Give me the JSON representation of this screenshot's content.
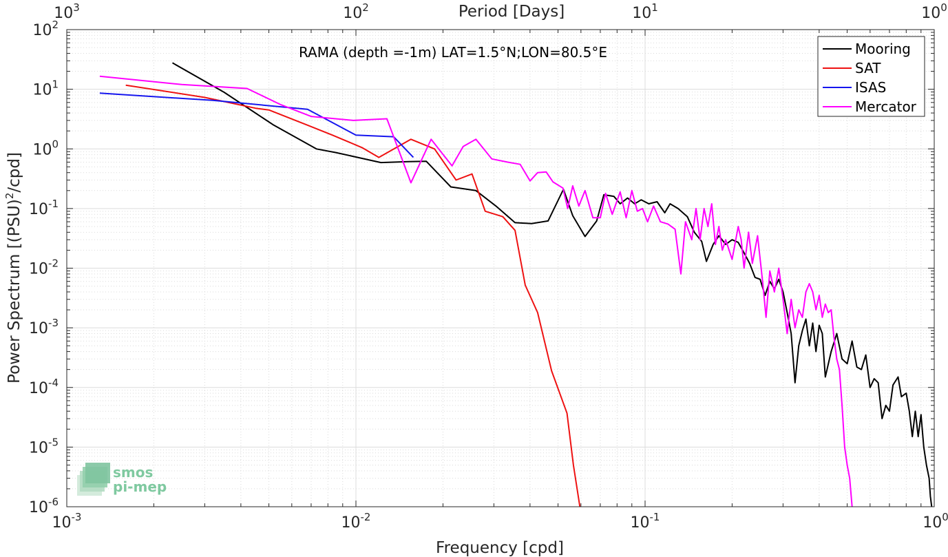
{
  "chart_data": {
    "type": "line",
    "title": "RAMA (depth =-1m) LAT=1.5°N;LON=80.5°E",
    "xlabel": "Frequency [cpd]",
    "ylabel_main": "Power Spectrum [(PSU)",
    "ylabel_sup": "2",
    "ylabel_tail": "/cpd]",
    "top_xlabel": "Period [Days]",
    "xscale": "log",
    "yscale": "log",
    "xlim": [
      0.001,
      1
    ],
    "ylim": [
      1e-06,
      100
    ],
    "grid": true,
    "legend_position": "top-right",
    "x_ticks": [
      {
        "value": 0.001,
        "base": "10",
        "exp": "-3"
      },
      {
        "value": 0.01,
        "base": "10",
        "exp": "-2"
      },
      {
        "value": 0.1,
        "base": "10",
        "exp": "-1"
      },
      {
        "value": 1,
        "base": "10",
        "exp": "0"
      }
    ],
    "y_ticks": [
      {
        "value": 1e-06,
        "base": "10",
        "exp": "-6"
      },
      {
        "value": 1e-05,
        "base": "10",
        "exp": "-5"
      },
      {
        "value": 0.0001,
        "base": "10",
        "exp": "-4"
      },
      {
        "value": 0.001,
        "base": "10",
        "exp": "-3"
      },
      {
        "value": 0.01,
        "base": "10",
        "exp": "-2"
      },
      {
        "value": 0.1,
        "base": "10",
        "exp": "-1"
      },
      {
        "value": 1,
        "base": "10",
        "exp": "0"
      },
      {
        "value": 10,
        "base": "10",
        "exp": "1"
      },
      {
        "value": 100,
        "base": "10",
        "exp": "2"
      }
    ],
    "top_ticks": [
      {
        "value": 0.001,
        "base": "10",
        "exp": "3"
      },
      {
        "value": 0.01,
        "base": "10",
        "exp": "2"
      },
      {
        "value": 0.1,
        "base": "10",
        "exp": "1"
      },
      {
        "value": 1,
        "base": "10",
        "exp": "0"
      }
    ],
    "series": [
      {
        "name": "Mooring",
        "color": "#000000",
        "points": [
          [
            0.00232,
            27.7
          ],
          [
            0.0035,
            8.9
          ],
          [
            0.0052,
            2.5
          ],
          [
            0.0073,
            1.0
          ],
          [
            0.0085,
            0.87
          ],
          [
            0.0122,
            0.59
          ],
          [
            0.0152,
            0.61
          ],
          [
            0.0175,
            0.62
          ],
          [
            0.0213,
            0.23
          ],
          [
            0.026,
            0.2
          ],
          [
            0.0305,
            0.11
          ],
          [
            0.0355,
            0.058
          ],
          [
            0.0405,
            0.056
          ],
          [
            0.0462,
            0.062
          ],
          [
            0.0522,
            0.21
          ],
          [
            0.0562,
            0.076
          ],
          [
            0.062,
            0.034
          ],
          [
            0.068,
            0.062
          ],
          [
            0.072,
            0.17
          ],
          [
            0.078,
            0.16
          ],
          [
            0.082,
            0.12
          ],
          [
            0.087,
            0.15
          ],
          [
            0.092,
            0.12
          ],
          [
            0.097,
            0.14
          ],
          [
            0.103,
            0.12
          ],
          [
            0.11,
            0.13
          ],
          [
            0.117,
            0.085
          ],
          [
            0.122,
            0.12
          ],
          [
            0.13,
            0.1
          ],
          [
            0.14,
            0.073
          ],
          [
            0.148,
            0.04
          ],
          [
            0.157,
            0.028
          ],
          [
            0.163,
            0.013
          ],
          [
            0.172,
            0.025
          ],
          [
            0.18,
            0.035
          ],
          [
            0.19,
            0.025
          ],
          [
            0.2,
            0.03
          ],
          [
            0.21,
            0.027
          ],
          [
            0.22,
            0.018
          ],
          [
            0.23,
            0.012
          ],
          [
            0.24,
            0.007
          ],
          [
            0.25,
            0.0065
          ],
          [
            0.26,
            0.0035
          ],
          [
            0.27,
            0.006
          ],
          [
            0.28,
            0.0045
          ],
          [
            0.29,
            0.0065
          ],
          [
            0.3,
            0.004
          ],
          [
            0.31,
            0.0018
          ],
          [
            0.32,
            0.0008
          ],
          [
            0.33,
            0.00012
          ],
          [
            0.34,
            0.0005
          ],
          [
            0.35,
            0.0009
          ],
          [
            0.36,
            0.0014
          ],
          [
            0.37,
            0.0005
          ],
          [
            0.38,
            0.0012
          ],
          [
            0.39,
            0.0004
          ],
          [
            0.4,
            0.0011
          ],
          [
            0.41,
            0.0008
          ],
          [
            0.42,
            0.00015
          ],
          [
            0.44,
            0.0004
          ],
          [
            0.46,
            0.0008
          ],
          [
            0.48,
            0.0003
          ],
          [
            0.5,
            0.00025
          ],
          [
            0.52,
            0.0006
          ],
          [
            0.54,
            0.00022
          ],
          [
            0.56,
            0.0002
          ],
          [
            0.58,
            0.00035
          ],
          [
            0.6,
            0.0001
          ],
          [
            0.62,
            0.00014
          ],
          [
            0.64,
            0.00012
          ],
          [
            0.66,
            3e-05
          ],
          [
            0.68,
            5e-05
          ],
          [
            0.7,
            4e-05
          ],
          [
            0.72,
            0.00011
          ],
          [
            0.75,
            0.00015
          ],
          [
            0.77,
            7e-05
          ],
          [
            0.8,
            8e-05
          ],
          [
            0.82,
            4e-05
          ],
          [
            0.84,
            1.5e-05
          ],
          [
            0.86,
            4e-05
          ],
          [
            0.88,
            1.5e-05
          ],
          [
            0.9,
            3.5e-05
          ],
          [
            0.92,
            1e-05
          ],
          [
            0.94,
            5e-06
          ],
          [
            0.96,
            3e-06
          ],
          [
            0.97,
            1.5e-06
          ],
          [
            0.98,
            1e-06
          ]
        ]
      },
      {
        "name": "SAT",
        "color": "#ee1111",
        "points": [
          [
            0.0016,
            11.7
          ],
          [
            0.003,
            7.3
          ],
          [
            0.0045,
            4.8
          ],
          [
            0.005,
            4.5
          ],
          [
            0.0068,
            2.5
          ],
          [
            0.0083,
            1.7
          ],
          [
            0.0105,
            1.05
          ],
          [
            0.012,
            0.72
          ],
          [
            0.0155,
            1.45
          ],
          [
            0.0187,
            1.0
          ],
          [
            0.0222,
            0.3
          ],
          [
            0.0252,
            0.38
          ],
          [
            0.028,
            0.09
          ],
          [
            0.0322,
            0.073
          ],
          [
            0.0355,
            0.043
          ],
          [
            0.0385,
            0.0052
          ],
          [
            0.0425,
            0.0018
          ],
          [
            0.0475,
            0.00019
          ],
          [
            0.0537,
            3.7e-05
          ],
          [
            0.0565,
            5e-06
          ],
          [
            0.0595,
            1e-06
          ]
        ]
      },
      {
        "name": "ISAS",
        "color": "#1515ee",
        "points": [
          [
            0.0013,
            8.6
          ],
          [
            0.0032,
            6.5
          ],
          [
            0.0068,
            4.6
          ],
          [
            0.01,
            1.7
          ],
          [
            0.0135,
            1.6
          ],
          [
            0.0158,
            0.72
          ]
        ]
      },
      {
        "name": "Mercator",
        "color": "#ff00ff",
        "points": [
          [
            0.0013,
            16.5
          ],
          [
            0.0025,
            12.0
          ],
          [
            0.0042,
            10.3
          ],
          [
            0.0055,
            5.5
          ],
          [
            0.007,
            3.5
          ],
          [
            0.0098,
            3.0
          ],
          [
            0.0128,
            3.2
          ],
          [
            0.0155,
            0.27
          ],
          [
            0.0182,
            1.45
          ],
          [
            0.0215,
            0.52
          ],
          [
            0.0235,
            1.1
          ],
          [
            0.026,
            1.45
          ],
          [
            0.0295,
            0.68
          ],
          [
            0.0335,
            0.6
          ],
          [
            0.037,
            0.55
          ],
          [
            0.04,
            0.29
          ],
          [
            0.0425,
            0.4
          ],
          [
            0.0455,
            0.41
          ],
          [
            0.048,
            0.28
          ],
          [
            0.052,
            0.22
          ],
          [
            0.054,
            0.1
          ],
          [
            0.0562,
            0.24
          ],
          [
            0.059,
            0.11
          ],
          [
            0.062,
            0.2
          ],
          [
            0.066,
            0.07
          ],
          [
            0.07,
            0.07
          ],
          [
            0.073,
            0.18
          ],
          [
            0.077,
            0.08
          ],
          [
            0.082,
            0.19
          ],
          [
            0.086,
            0.07
          ],
          [
            0.09,
            0.2
          ],
          [
            0.094,
            0.09
          ],
          [
            0.098,
            0.1
          ],
          [
            0.102,
            0.06
          ],
          [
            0.107,
            0.11
          ],
          [
            0.113,
            0.06
          ],
          [
            0.12,
            0.055
          ],
          [
            0.127,
            0.045
          ],
          [
            0.133,
            0.008
          ],
          [
            0.138,
            0.06
          ],
          [
            0.145,
            0.03
          ],
          [
            0.15,
            0.1
          ],
          [
            0.155,
            0.03
          ],
          [
            0.16,
            0.1
          ],
          [
            0.165,
            0.05
          ],
          [
            0.17,
            0.12
          ],
          [
            0.175,
            0.025
          ],
          [
            0.18,
            0.05
          ],
          [
            0.185,
            0.02
          ],
          [
            0.19,
            0.03
          ],
          [
            0.2,
            0.014
          ],
          [
            0.21,
            0.05
          ],
          [
            0.215,
            0.03
          ],
          [
            0.22,
            0.01
          ],
          [
            0.228,
            0.04
          ],
          [
            0.235,
            0.012
          ],
          [
            0.245,
            0.035
          ],
          [
            0.255,
            0.006
          ],
          [
            0.262,
            0.0015
          ],
          [
            0.27,
            0.009
          ],
          [
            0.28,
            0.004
          ],
          [
            0.29,
            0.01
          ],
          [
            0.3,
            0.003
          ],
          [
            0.31,
            0.0008
          ],
          [
            0.32,
            0.003
          ],
          [
            0.33,
            0.001
          ],
          [
            0.34,
            0.002
          ],
          [
            0.35,
            0.0015
          ],
          [
            0.36,
            0.004
          ],
          [
            0.37,
            0.0055
          ],
          [
            0.38,
            0.004
          ],
          [
            0.39,
            0.002
          ],
          [
            0.4,
            0.0035
          ],
          [
            0.41,
            0.0015
          ],
          [
            0.42,
            0.0025
          ],
          [
            0.43,
            0.0018
          ],
          [
            0.44,
            0.002
          ],
          [
            0.45,
            0.0007
          ],
          [
            0.46,
            0.0003
          ],
          [
            0.47,
            0.0002
          ],
          [
            0.48,
            5e-05
          ],
          [
            0.49,
            1e-05
          ],
          [
            0.5,
            5e-06
          ],
          [
            0.51,
            3e-06
          ],
          [
            0.52,
            1e-06
          ]
        ]
      }
    ]
  },
  "logo": {
    "line1": "smos",
    "line2": "pi-mep"
  }
}
